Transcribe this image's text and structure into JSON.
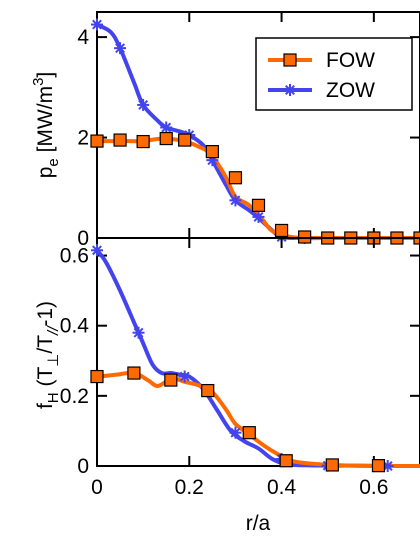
{
  "chart_data": [
    {
      "type": "line",
      "ylabel": "p_e [MW/m^3]",
      "ylabel_parts": {
        "main": "p",
        "sub": "e",
        "rest": " [MW/m",
        "sup": "3",
        "end": "]"
      },
      "xlabel": "",
      "xlim": [
        0,
        0.7
      ],
      "ylim": [
        0,
        4.5
      ],
      "yticks": [
        0,
        2,
        4
      ],
      "ytick_labels": [
        "0",
        "2",
        "4"
      ],
      "xticks": [
        0,
        0.2,
        0.4,
        0.6
      ],
      "xtick_labels": [],
      "legend_position": "top-right",
      "series": [
        {
          "name": "FOW",
          "color": "#ff6a00",
          "marker": "square",
          "x": [
            0,
            0.03,
            0.06,
            0.1,
            0.14,
            0.18,
            0.2,
            0.22,
            0.24,
            0.26,
            0.28,
            0.3,
            0.33,
            0.36,
            0.38,
            0.42,
            0.46,
            0.5,
            0.55,
            0.6,
            0.65,
            0.7
          ],
          "y": [
            1.93,
            1.93,
            1.93,
            1.93,
            1.98,
            1.95,
            1.9,
            1.82,
            1.72,
            1.5,
            1.2,
            0.82,
            0.65,
            0.35,
            0.14,
            0.02,
            0,
            0,
            0,
            0,
            0,
            0
          ],
          "marker_x": [
            0,
            0.05,
            0.1,
            0.15,
            0.19,
            0.25,
            0.3,
            0.35,
            0.4,
            0.45,
            0.5,
            0.55,
            0.6,
            0.65,
            0.7
          ],
          "marker_y": [
            1.93,
            1.95,
            1.92,
            1.98,
            1.95,
            1.72,
            1.2,
            0.65,
            0.15,
            0.02,
            0,
            0,
            0,
            0,
            0
          ]
        },
        {
          "name": "ZOW",
          "color": "#4444ee",
          "marker": "asterisk",
          "x": [
            0,
            0.03,
            0.05,
            0.08,
            0.1,
            0.13,
            0.15,
            0.18,
            0.2,
            0.23,
            0.25,
            0.28,
            0.3,
            0.33,
            0.35,
            0.38,
            0.4,
            0.45,
            0.5,
            0.6,
            0.7
          ],
          "y": [
            4.25,
            4.1,
            3.78,
            3.1,
            2.65,
            2.35,
            2.2,
            2.12,
            2.05,
            1.85,
            1.55,
            1.05,
            0.75,
            0.55,
            0.4,
            0.15,
            0.02,
            0,
            0,
            0,
            0
          ],
          "marker_x": [
            0,
            0.05,
            0.1,
            0.15,
            0.2,
            0.25,
            0.3,
            0.35,
            0.4,
            0.45,
            0.5,
            0.55,
            0.6,
            0.65,
            0.7
          ],
          "marker_y": [
            4.25,
            3.78,
            2.65,
            2.2,
            2.05,
            1.55,
            0.75,
            0.42,
            0.02,
            0,
            0,
            0,
            0,
            0,
            0
          ]
        }
      ]
    },
    {
      "type": "line",
      "ylabel": "f_H (T_⊥/T_//-1)",
      "ylabel_parts": {
        "main": "f",
        "sub": "H",
        "rest": " (T",
        "sub2": "⊥",
        "mid": "/T",
        "sub3": "//",
        "end": "-1)"
      },
      "xlabel": "r/a",
      "xlim": [
        0,
        0.7
      ],
      "ylim": [
        0,
        0.65
      ],
      "yticks": [
        0,
        0.2,
        0.4,
        0.6
      ],
      "ytick_labels": [
        "0",
        "0.2",
        "0.4",
        "0.6"
      ],
      "xticks": [
        0,
        0.2,
        0.4,
        0.6
      ],
      "xtick_labels": [
        "0",
        "0.2",
        "0.4",
        "0.6"
      ],
      "series": [
        {
          "name": "FOW",
          "color": "#ff6a00",
          "marker": "square",
          "x": [
            0,
            0.04,
            0.08,
            0.11,
            0.13,
            0.15,
            0.17,
            0.19,
            0.22,
            0.25,
            0.28,
            0.3,
            0.33,
            0.36,
            0.39,
            0.42,
            0.46,
            0.51,
            0.56,
            0.62,
            0.7
          ],
          "y": [
            0.255,
            0.26,
            0.265,
            0.245,
            0.228,
            0.24,
            0.248,
            0.24,
            0.23,
            0.21,
            0.16,
            0.12,
            0.09,
            0.06,
            0.035,
            0.015,
            0.007,
            0.003,
            0.001,
            0,
            0
          ],
          "marker_x": [
            0,
            0.08,
            0.16,
            0.24,
            0.33,
            0.41,
            0.51,
            0.61
          ],
          "marker_y": [
            0.255,
            0.265,
            0.245,
            0.215,
            0.095,
            0.015,
            0.003,
            0.001
          ]
        },
        {
          "name": "ZOW",
          "color": "#4444ee",
          "marker": "asterisk",
          "x": [
            0,
            0.02,
            0.05,
            0.08,
            0.1,
            0.12,
            0.14,
            0.16,
            0.18,
            0.2,
            0.23,
            0.26,
            0.29,
            0.32,
            0.35,
            0.38,
            0.41,
            0.45,
            0.5,
            0.55,
            0.63,
            0.7
          ],
          "y": [
            0.615,
            0.58,
            0.5,
            0.41,
            0.35,
            0.29,
            0.265,
            0.265,
            0.26,
            0.255,
            0.22,
            0.16,
            0.1,
            0.07,
            0.05,
            0.02,
            0.005,
            0.002,
            0.001,
            0.001,
            0,
            0
          ],
          "marker_x": [
            0,
            0.09,
            0.19,
            0.3,
            0.4,
            0.5,
            0.63
          ],
          "marker_y": [
            0.615,
            0.38,
            0.255,
            0.095,
            0.02,
            0.001,
            0
          ]
        }
      ]
    }
  ]
}
